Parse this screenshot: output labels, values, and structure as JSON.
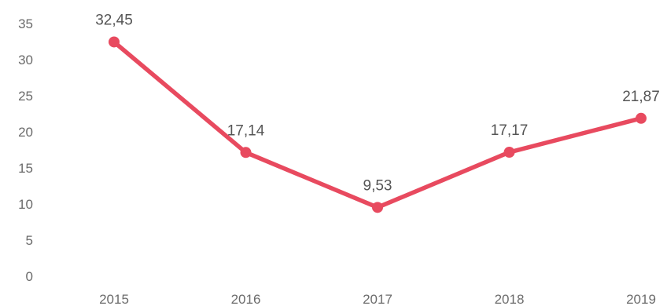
{
  "chart_data": {
    "type": "line",
    "title": "",
    "xlabel": "",
    "ylabel": "",
    "categories": [
      "2015",
      "2016",
      "2017",
      "2018",
      "2019"
    ],
    "series": [
      {
        "values": [
          32.45,
          17.14,
          9.53,
          17.17,
          21.87
        ],
        "labels": [
          "32,45",
          "17,14",
          "9,53",
          "17,17",
          "21,87"
        ],
        "color": "#e84a5f"
      }
    ],
    "ylim": [
      0,
      35
    ],
    "yticks": [
      0,
      5,
      10,
      15,
      20,
      25,
      30,
      35
    ],
    "ytick_labels": [
      "0",
      "5",
      "10",
      "15",
      "20",
      "25",
      "30",
      "35"
    ],
    "grid": false,
    "legend": "none",
    "markers": true
  }
}
